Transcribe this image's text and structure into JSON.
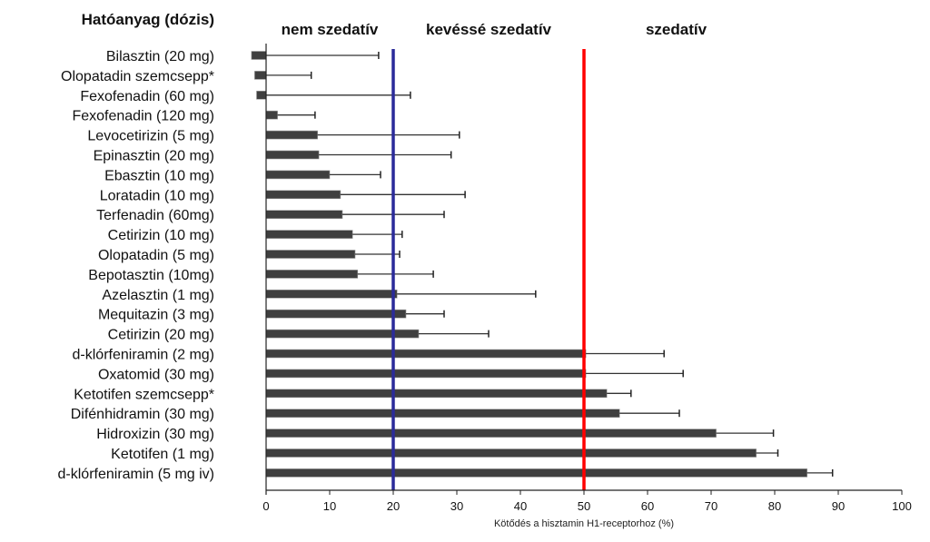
{
  "chart_data": {
    "type": "bar",
    "orientation": "horizontal",
    "title": "",
    "category_header": "Hatóanyag (dózis)",
    "xlabel": "Kötődés a hisztamin H1-receptorhoz (%)",
    "ylabel": "",
    "xlim": [
      0,
      100
    ],
    "xticks": [
      0,
      10,
      20,
      30,
      40,
      50,
      60,
      70,
      80,
      90,
      100
    ],
    "grid": false,
    "bar_color": "#3f3f3f",
    "categories": [
      "Bilasztin (20 mg)",
      "Olopatadin szemcsepp*",
      "Fexofenadin (60 mg)",
      "Fexofenadin (120 mg)",
      "Levocetirizin (5 mg)",
      "Epinasztin (20 mg)",
      "Ebasztin (10 mg)",
      "Loratadin (10 mg)",
      "Terfenadin (60mg)",
      "Cetirizin (10 mg)",
      "Olopatadin (5 mg)",
      "Bepotasztin (10mg)",
      "Azelasztin (1 mg)",
      "Mequitazin (3 mg)",
      "Cetirizin (20 mg)",
      "d-klórfeniramin (2 mg)",
      "Oxatomid (30 mg)",
      "Ketotifen szemcsepp*",
      "Difénhidramin (30 mg)",
      "Hidroxizin (30 mg)",
      "Ketotifen (1 mg)",
      "d-klórfeniramin (5 mg iv)"
    ],
    "values": [
      -2.3,
      -1.8,
      -1.5,
      1.8,
      8.1,
      8.3,
      10.0,
      11.7,
      12.0,
      13.6,
      14.0,
      14.4,
      20.6,
      22.0,
      24.0,
      50.3,
      50.3,
      53.6,
      55.6,
      70.8,
      77.1,
      85.1
    ],
    "error_upper": [
      17.7,
      7.1,
      22.7,
      7.7,
      30.4,
      29.1,
      18.0,
      31.3,
      28.0,
      21.4,
      21.0,
      26.3,
      42.4,
      28.0,
      35.0,
      62.6,
      65.6,
      57.4,
      65.0,
      79.8,
      80.5,
      89.1
    ],
    "reference_lines": [
      {
        "x": 20,
        "color": "#2b2b9a"
      },
      {
        "x": 50,
        "color": "#ff0000"
      }
    ],
    "region_labels": [
      {
        "label": "nem szedatív",
        "x_center": 10
      },
      {
        "label": "kevéssé szedatív",
        "x_center": 35
      },
      {
        "label": "szedatív",
        "x_center": 64.5
      }
    ]
  }
}
